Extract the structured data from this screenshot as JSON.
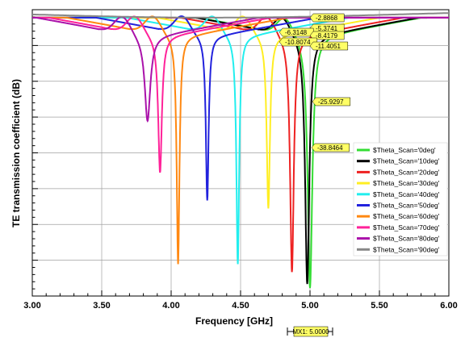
{
  "chart_data": {
    "type": "line",
    "xlabel": "Frequency [GHz]",
    "ylabel": "TE transmission coefficient  (dB)",
    "xlim": [
      3.0,
      6.0
    ],
    "ylim": [
      -36,
      0
    ],
    "grid": true,
    "legend_position": "right-bottom",
    "x_ticks": [
      "3.00",
      "3.50",
      "4.00",
      "4.50",
      "5.00",
      "5.50",
      "6.00"
    ],
    "series": [
      {
        "name": "$Theta_Scan='0deg'",
        "color": "#33dd33",
        "f0": 5.0,
        "min": -35.0,
        "w": 0.1
      },
      {
        "name": "$Theta_Scan='10deg'",
        "color": "#000000",
        "f0": 4.98,
        "min": -34.5,
        "w": 0.09
      },
      {
        "name": "$Theta_Scan='20deg'",
        "color": "#ee2222",
        "f0": 4.87,
        "min": -33.0,
        "w": 0.08
      },
      {
        "name": "$Theta_Scan='30deg'",
        "color": "#ffee22",
        "f0": 4.7,
        "min": -25.0,
        "w": 0.07
      },
      {
        "name": "$Theta_Scan='40deg'",
        "color": "#22eeee",
        "f0": 4.48,
        "min": -32.0,
        "w": 0.06
      },
      {
        "name": "$Theta_Scan='50deg'",
        "color": "#2222dd",
        "f0": 4.26,
        "min": -24.0,
        "w": 0.06
      },
      {
        "name": "$Theta_Scan='60deg'",
        "color": "#ff8811",
        "f0": 4.05,
        "min": -32.0,
        "w": 0.06
      },
      {
        "name": "$Theta_Scan='70deg'",
        "color": "#ff2299",
        "f0": 3.92,
        "min": -20.5,
        "w": 0.08
      },
      {
        "name": "$Theta_Scan='80deg'",
        "color": "#aa11aa",
        "f0": 3.83,
        "min": -14.0,
        "w": 0.12
      },
      {
        "name": "$Theta_Scan='90deg'",
        "color": "#888888",
        "f0": null,
        "min": null,
        "w": null
      }
    ],
    "marker_labels": [
      "-2.8868",
      "-5.3741",
      "-6.3148",
      "-8.4179",
      "-10.8074",
      "-11.4051",
      "-25.9297",
      "-38.8464"
    ],
    "x_marker": {
      "label": "MX1: 5.0000",
      "x": 5.0
    }
  }
}
